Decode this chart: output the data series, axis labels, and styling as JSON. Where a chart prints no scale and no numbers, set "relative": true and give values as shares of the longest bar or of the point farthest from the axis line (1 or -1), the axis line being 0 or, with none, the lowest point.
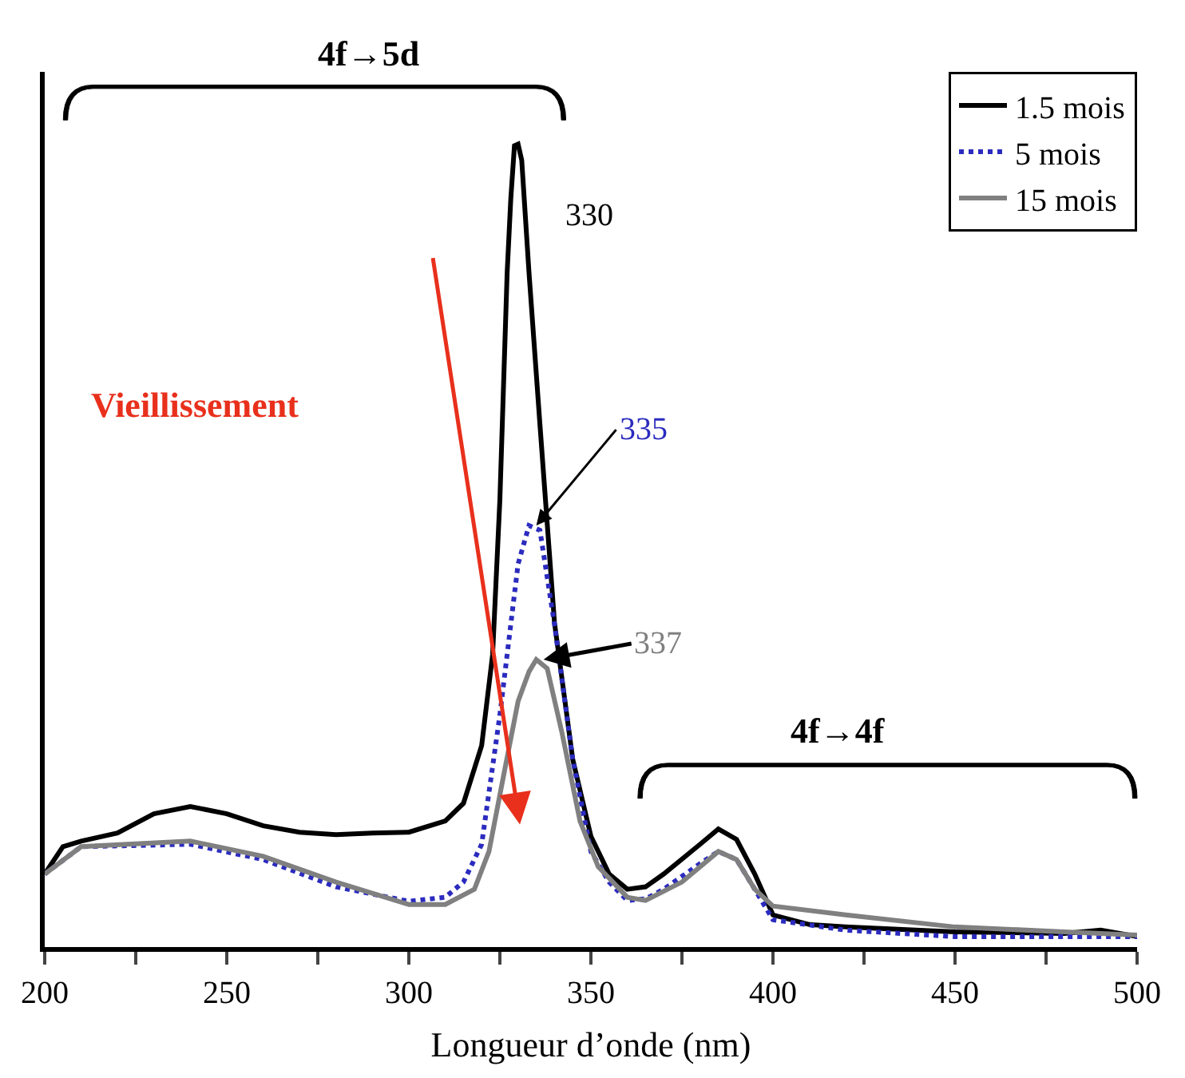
{
  "chart_data": {
    "type": "line",
    "relative": true,
    "xlabel": "Longueur d’onde (nm)",
    "x": [
      200,
      205,
      210,
      220,
      230,
      240,
      250,
      260,
      270,
      280,
      290,
      300,
      310,
      315,
      320,
      323,
      325,
      327,
      328,
      329,
      330,
      331,
      333,
      336,
      340,
      345,
      350,
      355,
      360,
      365,
      370,
      380,
      385,
      390,
      395,
      400,
      410,
      420,
      450,
      480,
      490,
      500
    ],
    "xlim": [
      200,
      500
    ],
    "xticks": [
      200,
      {
        "value": 225,
        "label": null
      },
      250,
      {
        "value": 275,
        "label": null
      },
      300,
      {
        "value": 325,
        "label": null
      },
      350,
      {
        "value": 375,
        "label": null
      },
      400,
      {
        "value": 425,
        "label": null
      },
      450,
      {
        "value": 475,
        "label": null
      },
      500
    ],
    "series": [
      {
        "name": "1.5 mois",
        "color": "#000000",
        "line_style": "solid",
        "values": [
          0.091,
          0.125,
          0.132,
          0.142,
          0.166,
          0.175,
          0.166,
          0.151,
          0.143,
          0.14,
          0.142,
          0.143,
          0.157,
          0.179,
          0.251,
          0.364,
          0.557,
          0.84,
          0.932,
          0.998,
          1.0,
          0.98,
          0.84,
          0.651,
          0.404,
          0.234,
          0.138,
          0.091,
          0.072,
          0.075,
          0.091,
          0.128,
          0.147,
          0.134,
          0.091,
          0.04,
          0.028,
          0.025,
          0.019,
          0.017,
          0.021,
          0.013
        ]
      },
      {
        "name": "5 mois",
        "color": "#2b2bbf",
        "line_style": "dotted",
        "x": [
          200,
          210,
          240,
          260,
          280,
          300,
          310,
          315,
          320,
          325,
          328,
          330,
          333,
          336,
          340,
          345,
          350,
          355,
          360,
          365,
          370,
          380,
          385,
          390,
          395,
          400,
          420,
          450,
          500
        ],
        "values": [
          0.091,
          0.125,
          0.128,
          0.109,
          0.075,
          0.057,
          0.062,
          0.081,
          0.128,
          0.289,
          0.402,
          0.477,
          0.525,
          0.519,
          0.402,
          0.234,
          0.119,
          0.081,
          0.058,
          0.06,
          0.072,
          0.104,
          0.119,
          0.109,
          0.072,
          0.034,
          0.021,
          0.013,
          0.013
        ]
      },
      {
        "name": "15 mois",
        "color": "#808080",
        "line_style": "solid",
        "x": [
          200,
          210,
          240,
          260,
          280,
          300,
          310,
          318,
          322,
          326,
          330,
          333,
          335,
          338,
          342,
          347,
          352,
          360,
          365,
          375,
          385,
          390,
          395,
          400,
          420,
          450,
          480,
          500
        ],
        "values": [
          0.091,
          0.125,
          0.132,
          0.113,
          0.081,
          0.053,
          0.053,
          0.072,
          0.119,
          0.213,
          0.306,
          0.343,
          0.358,
          0.347,
          0.268,
          0.157,
          0.1,
          0.062,
          0.058,
          0.081,
          0.119,
          0.109,
          0.072,
          0.051,
          0.04,
          0.025,
          0.019,
          0.015
        ]
      }
    ],
    "annotations": [
      {
        "text": "330",
        "x": 330,
        "y": 1.0
      },
      {
        "text": "335",
        "x": 335,
        "y": 0.525
      },
      {
        "text": "337",
        "x": 337,
        "y": 0.358
      },
      "Vieillissement",
      "4f→5d",
      "4f→4f"
    ],
    "legend": "top right",
    "marker": "none"
  }
}
